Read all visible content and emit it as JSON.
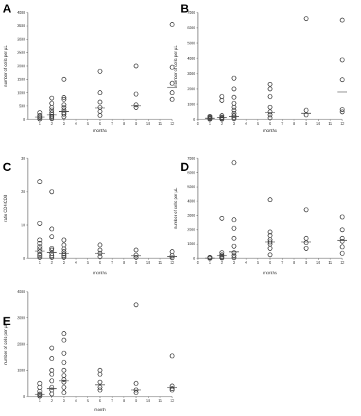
{
  "chart_data": [
    {
      "type": "scatter",
      "panel_letter": "A",
      "xlabel": "months",
      "ylabel": "number of cells per µL",
      "xlim": [
        0,
        12
      ],
      "ylim": [
        0,
        4000
      ],
      "xticks": [
        1,
        2,
        3,
        4,
        5,
        6,
        7,
        8,
        9,
        10,
        11,
        12
      ],
      "yticks": [
        0,
        500,
        1000,
        1500,
        2000,
        2500,
        3000,
        3500,
        4000
      ],
      "points": [
        {
          "x": 1,
          "y": 20
        },
        {
          "x": 1,
          "y": 60
        },
        {
          "x": 1,
          "y": 100
        },
        {
          "x": 1,
          "y": 150
        },
        {
          "x": 1,
          "y": 250
        },
        {
          "x": 2,
          "y": 30
        },
        {
          "x": 2,
          "y": 80
        },
        {
          "x": 2,
          "y": 120
        },
        {
          "x": 2,
          "y": 180
        },
        {
          "x": 2,
          "y": 250
        },
        {
          "x": 2,
          "y": 350
        },
        {
          "x": 2,
          "y": 450
        },
        {
          "x": 2,
          "y": 600
        },
        {
          "x": 2,
          "y": 800
        },
        {
          "x": 3,
          "y": 100
        },
        {
          "x": 3,
          "y": 200
        },
        {
          "x": 3,
          "y": 260
        },
        {
          "x": 3,
          "y": 350
        },
        {
          "x": 3,
          "y": 450
        },
        {
          "x": 3,
          "y": 550
        },
        {
          "x": 3,
          "y": 750
        },
        {
          "x": 3,
          "y": 820
        },
        {
          "x": 3,
          "y": 1500
        },
        {
          "x": 6,
          "y": 150
        },
        {
          "x": 6,
          "y": 300
        },
        {
          "x": 6,
          "y": 450
        },
        {
          "x": 6,
          "y": 650
        },
        {
          "x": 6,
          "y": 1000
        },
        {
          "x": 6,
          "y": 1800
        },
        {
          "x": 9,
          "y": 450
        },
        {
          "x": 9,
          "y": 550
        },
        {
          "x": 9,
          "y": 950
        },
        {
          "x": 9,
          "y": 2000
        },
        {
          "x": 12,
          "y": 750
        },
        {
          "x": 12,
          "y": 1000
        },
        {
          "x": 12,
          "y": 1350
        },
        {
          "x": 12,
          "y": 1950
        },
        {
          "x": 12,
          "y": 3550
        }
      ],
      "medians": [
        {
          "x": 1,
          "y": 90
        },
        {
          "x": 2,
          "y": 170
        },
        {
          "x": 3,
          "y": 300
        },
        {
          "x": 6,
          "y": 430
        },
        {
          "x": 9,
          "y": 510
        },
        {
          "x": 12,
          "y": 1200
        }
      ]
    },
    {
      "type": "scatter",
      "panel_letter": "B",
      "xlabel": "months",
      "ylabel": "number of cells per µL",
      "xlim": [
        0,
        12
      ],
      "ylim": [
        0,
        7000
      ],
      "xticks": [
        0,
        1,
        2,
        3,
        4,
        5,
        6,
        7,
        8,
        9,
        10,
        11,
        12
      ],
      "yticks": [
        0,
        1000,
        2000,
        3000,
        4000,
        5000,
        6000,
        7000
      ],
      "points": [
        {
          "x": 1,
          "y": 20
        },
        {
          "x": 1,
          "y": 60
        },
        {
          "x": 1,
          "y": 100
        },
        {
          "x": 1,
          "y": 150
        },
        {
          "x": 1,
          "y": 200
        },
        {
          "x": 2,
          "y": 20
        },
        {
          "x": 2,
          "y": 50
        },
        {
          "x": 2,
          "y": 100
        },
        {
          "x": 2,
          "y": 150
        },
        {
          "x": 2,
          "y": 250
        },
        {
          "x": 2,
          "y": 1250
        },
        {
          "x": 2,
          "y": 1500
        },
        {
          "x": 3,
          "y": 50
        },
        {
          "x": 3,
          "y": 150
        },
        {
          "x": 3,
          "y": 250
        },
        {
          "x": 3,
          "y": 400
        },
        {
          "x": 3,
          "y": 600
        },
        {
          "x": 3,
          "y": 800
        },
        {
          "x": 3,
          "y": 1050
        },
        {
          "x": 3,
          "y": 1450
        },
        {
          "x": 3,
          "y": 2000
        },
        {
          "x": 3,
          "y": 2700
        },
        {
          "x": 6,
          "y": 100
        },
        {
          "x": 6,
          "y": 300
        },
        {
          "x": 6,
          "y": 500
        },
        {
          "x": 6,
          "y": 800
        },
        {
          "x": 6,
          "y": 1500
        },
        {
          "x": 6,
          "y": 2000
        },
        {
          "x": 6,
          "y": 2300
        },
        {
          "x": 9,
          "y": 300
        },
        {
          "x": 9,
          "y": 600
        },
        {
          "x": 9,
          "y": 6600
        },
        {
          "x": 12,
          "y": 500
        },
        {
          "x": 12,
          "y": 650
        },
        {
          "x": 12,
          "y": 2600
        },
        {
          "x": 12,
          "y": 3900
        },
        {
          "x": 12,
          "y": 6500
        }
      ],
      "medians": [
        {
          "x": 1,
          "y": 80
        },
        {
          "x": 2,
          "y": 110
        },
        {
          "x": 3,
          "y": 200
        },
        {
          "x": 6,
          "y": 450
        },
        {
          "x": 9,
          "y": 400
        },
        {
          "x": 12,
          "y": 1800
        }
      ]
    },
    {
      "type": "scatter",
      "panel_letter": "C",
      "xlabel": "months",
      "ylabel": "ratio CD4/CD8",
      "xlim": [
        0,
        12
      ],
      "ylim": [
        0,
        30
      ],
      "xticks": [
        1,
        2,
        3,
        4,
        5,
        6,
        7,
        8,
        9,
        10,
        11,
        12
      ],
      "yticks": [
        0,
        10,
        20,
        30
      ],
      "points": [
        {
          "x": 1,
          "y": 0.3
        },
        {
          "x": 1,
          "y": 0.8
        },
        {
          "x": 1,
          "y": 1.2
        },
        {
          "x": 1,
          "y": 2.0
        },
        {
          "x": 1,
          "y": 2.8
        },
        {
          "x": 1,
          "y": 3.5
        },
        {
          "x": 1,
          "y": 4.5
        },
        {
          "x": 1,
          "y": 5.5
        },
        {
          "x": 1,
          "y": 10.5
        },
        {
          "x": 1,
          "y": 23
        },
        {
          "x": 2,
          "y": 0.3
        },
        {
          "x": 2,
          "y": 0.8
        },
        {
          "x": 2,
          "y": 1.5
        },
        {
          "x": 2,
          "y": 2.5
        },
        {
          "x": 2,
          "y": 3.0
        },
        {
          "x": 2,
          "y": 6.5
        },
        {
          "x": 2,
          "y": 8.8
        },
        {
          "x": 2,
          "y": 20
        },
        {
          "x": 3,
          "y": 0.3
        },
        {
          "x": 3,
          "y": 0.8
        },
        {
          "x": 3,
          "y": 1.3
        },
        {
          "x": 3,
          "y": 2.0
        },
        {
          "x": 3,
          "y": 2.8
        },
        {
          "x": 3,
          "y": 4.0
        },
        {
          "x": 3,
          "y": 5.5
        },
        {
          "x": 6,
          "y": 0.5
        },
        {
          "x": 6,
          "y": 1.5
        },
        {
          "x": 6,
          "y": 2.5
        },
        {
          "x": 6,
          "y": 4.0
        },
        {
          "x": 9,
          "y": 0.3
        },
        {
          "x": 9,
          "y": 1.0
        },
        {
          "x": 9,
          "y": 2.5
        },
        {
          "x": 12,
          "y": 0.2
        },
        {
          "x": 12,
          "y": 0.8
        },
        {
          "x": 12,
          "y": 2.0
        }
      ],
      "medians": [
        {
          "x": 1,
          "y": 2.2
        },
        {
          "x": 2,
          "y": 1.8
        },
        {
          "x": 3,
          "y": 1.5
        },
        {
          "x": 6,
          "y": 1.5
        },
        {
          "x": 9,
          "y": 0.8
        },
        {
          "x": 12,
          "y": 0.5
        }
      ]
    },
    {
      "type": "scatter",
      "panel_letter": "D",
      "xlabel": "months",
      "ylabel": "number of cells per µL",
      "xlim": [
        0,
        12
      ],
      "ylim": [
        0,
        7000
      ],
      "xticks": [
        0,
        1,
        2,
        3,
        4,
        5,
        6,
        7,
        8,
        9,
        10,
        11,
        12
      ],
      "yticks": [
        0,
        1000,
        2000,
        3000,
        4000,
        5000,
        6000,
        7000
      ],
      "points": [
        {
          "x": 1,
          "y": 5
        },
        {
          "x": 1,
          "y": 15
        },
        {
          "x": 1,
          "y": 25
        },
        {
          "x": 1,
          "y": 35
        },
        {
          "x": 1,
          "y": 50
        },
        {
          "x": 1,
          "y": 70
        },
        {
          "x": 2,
          "y": 30
        },
        {
          "x": 2,
          "y": 80
        },
        {
          "x": 2,
          "y": 150
        },
        {
          "x": 2,
          "y": 250
        },
        {
          "x": 2,
          "y": 400
        },
        {
          "x": 2,
          "y": 2800
        },
        {
          "x": 3,
          "y": 50
        },
        {
          "x": 3,
          "y": 200
        },
        {
          "x": 3,
          "y": 400
        },
        {
          "x": 3,
          "y": 850
        },
        {
          "x": 3,
          "y": 1400
        },
        {
          "x": 3,
          "y": 2100
        },
        {
          "x": 3,
          "y": 2700
        },
        {
          "x": 3,
          "y": 6700
        },
        {
          "x": 6,
          "y": 250
        },
        {
          "x": 6,
          "y": 700
        },
        {
          "x": 6,
          "y": 1000
        },
        {
          "x": 6,
          "y": 1150
        },
        {
          "x": 6,
          "y": 1300
        },
        {
          "x": 6,
          "y": 1600
        },
        {
          "x": 6,
          "y": 1850
        },
        {
          "x": 6,
          "y": 4100
        },
        {
          "x": 9,
          "y": 700
        },
        {
          "x": 9,
          "y": 1100
        },
        {
          "x": 9,
          "y": 1400
        },
        {
          "x": 9,
          "y": 3400
        },
        {
          "x": 12,
          "y": 350
        },
        {
          "x": 12,
          "y": 800
        },
        {
          "x": 12,
          "y": 1200
        },
        {
          "x": 12,
          "y": 1400
        },
        {
          "x": 12,
          "y": 2000
        },
        {
          "x": 12,
          "y": 2900
        }
      ],
      "medians": [
        {
          "x": 1,
          "y": 25
        },
        {
          "x": 2,
          "y": 200
        },
        {
          "x": 3,
          "y": 450
        },
        {
          "x": 6,
          "y": 1150
        },
        {
          "x": 9,
          "y": 1150
        },
        {
          "x": 12,
          "y": 1250
        }
      ]
    },
    {
      "type": "scatter",
      "panel_letter": "E",
      "xlabel": "month",
      "ylabel": "number of cells per µL",
      "xlim": [
        0,
        12
      ],
      "ylim": [
        0,
        4000
      ],
      "xticks": [
        1,
        2,
        3,
        4,
        5,
        6,
        7,
        8,
        9,
        10,
        11,
        12
      ],
      "yticks": [
        0,
        1000,
        2000,
        3000,
        4000
      ],
      "points": [
        {
          "x": 1,
          "y": 20
        },
        {
          "x": 1,
          "y": 60
        },
        {
          "x": 1,
          "y": 100
        },
        {
          "x": 1,
          "y": 200
        },
        {
          "x": 1,
          "y": 350
        },
        {
          "x": 1,
          "y": 500
        },
        {
          "x": 2,
          "y": 100
        },
        {
          "x": 2,
          "y": 250
        },
        {
          "x": 2,
          "y": 350
        },
        {
          "x": 2,
          "y": 600
        },
        {
          "x": 2,
          "y": 850
        },
        {
          "x": 2,
          "y": 1000
        },
        {
          "x": 2,
          "y": 1450
        },
        {
          "x": 2,
          "y": 1850
        },
        {
          "x": 3,
          "y": 150
        },
        {
          "x": 3,
          "y": 350
        },
        {
          "x": 3,
          "y": 550
        },
        {
          "x": 3,
          "y": 650
        },
        {
          "x": 3,
          "y": 800
        },
        {
          "x": 3,
          "y": 1000
        },
        {
          "x": 3,
          "y": 1300
        },
        {
          "x": 3,
          "y": 1650
        },
        {
          "x": 3,
          "y": 2150
        },
        {
          "x": 3,
          "y": 2400
        },
        {
          "x": 6,
          "y": 250
        },
        {
          "x": 6,
          "y": 350
        },
        {
          "x": 6,
          "y": 550
        },
        {
          "x": 6,
          "y": 850
        },
        {
          "x": 6,
          "y": 1000
        },
        {
          "x": 9,
          "y": 150
        },
        {
          "x": 9,
          "y": 250
        },
        {
          "x": 9,
          "y": 500
        },
        {
          "x": 9,
          "y": 3500
        },
        {
          "x": 12,
          "y": 250
        },
        {
          "x": 12,
          "y": 300
        },
        {
          "x": 12,
          "y": 400
        },
        {
          "x": 12,
          "y": 1550
        }
      ],
      "medians": [
        {
          "x": 1,
          "y": 80
        },
        {
          "x": 2,
          "y": 300
        },
        {
          "x": 3,
          "y": 600
        },
        {
          "x": 6,
          "y": 450
        },
        {
          "x": 9,
          "y": 250
        },
        {
          "x": 12,
          "y": 350
        }
      ]
    }
  ]
}
